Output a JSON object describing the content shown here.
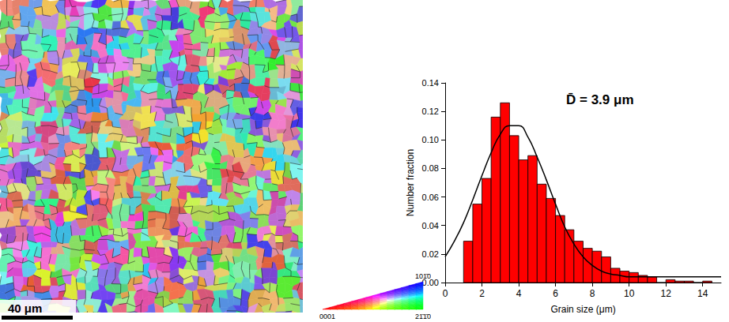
{
  "chart_data": {
    "type": "histogram",
    "xlabel": "Grain size (μm)",
    "ylabel": "Number fraction",
    "annotation": "D̄ = 3.9 μm",
    "bins": [
      1.0,
      1.5,
      2.0,
      2.5,
      3.0,
      3.5,
      4.0,
      4.5,
      5.0,
      5.5,
      6.0,
      6.5,
      7.0,
      7.5,
      8.0,
      8.5,
      9.0,
      9.5,
      10.0,
      10.5,
      11.0,
      11.5,
      12.0,
      12.5,
      13.0,
      13.5,
      14.0,
      14.5
    ],
    "values": [
      0.029,
      0.055,
      0.073,
      0.116,
      0.126,
      0.103,
      0.086,
      0.089,
      0.069,
      0.059,
      0.047,
      0.037,
      0.029,
      0.024,
      0.022,
      0.018,
      0.01,
      0.008,
      0.007,
      0.005,
      0.004,
      0.0,
      0.002,
      0.001,
      0.001,
      0.0,
      0.001
    ],
    "color": "#ff0000",
    "curve": {
      "type": "line",
      "color": "#000000",
      "x": [
        0,
        0.5,
        1,
        1.5,
        2,
        2.5,
        3,
        3.5,
        4,
        4.5,
        5,
        5.5,
        6,
        6.5,
        7,
        7.5,
        8,
        8.5,
        9,
        9.5,
        10,
        11,
        12,
        13,
        14,
        15
      ],
      "values": [
        0.018,
        0.029,
        0.042,
        0.058,
        0.075,
        0.091,
        0.104,
        0.11,
        0.11,
        0.102,
        0.088,
        0.072,
        0.055,
        0.039,
        0.027,
        0.018,
        0.012,
        0.008,
        0.006,
        0.005,
        0.004,
        0.004,
        0.004,
        0.004,
        0.004,
        0.004
      ]
    },
    "xlim": [
      0,
      15
    ],
    "xticks": [
      0,
      2,
      4,
      6,
      8,
      10,
      12,
      14
    ],
    "ylim": [
      0,
      0.14
    ],
    "yticks": [
      {
        "value": 0,
        "label": "0.00"
      },
      {
        "value": 0.02,
        "label": "0.02"
      },
      {
        "value": 0.04,
        "label": "0.04"
      },
      {
        "value": 0.06,
        "label": "0.06"
      },
      {
        "value": 0.08,
        "label": "0.08"
      },
      {
        "value": 0.1,
        "label": "0.10"
      },
      {
        "value": 0.12,
        "label": "0.12"
      },
      {
        "value": 0.14,
        "label": "0.14"
      }
    ],
    "grid": false
  },
  "map": {
    "scale_bar_label": "40 μm",
    "color_key_labels": [
      "0001",
      "21̄1̄0",
      "101̄0"
    ]
  }
}
